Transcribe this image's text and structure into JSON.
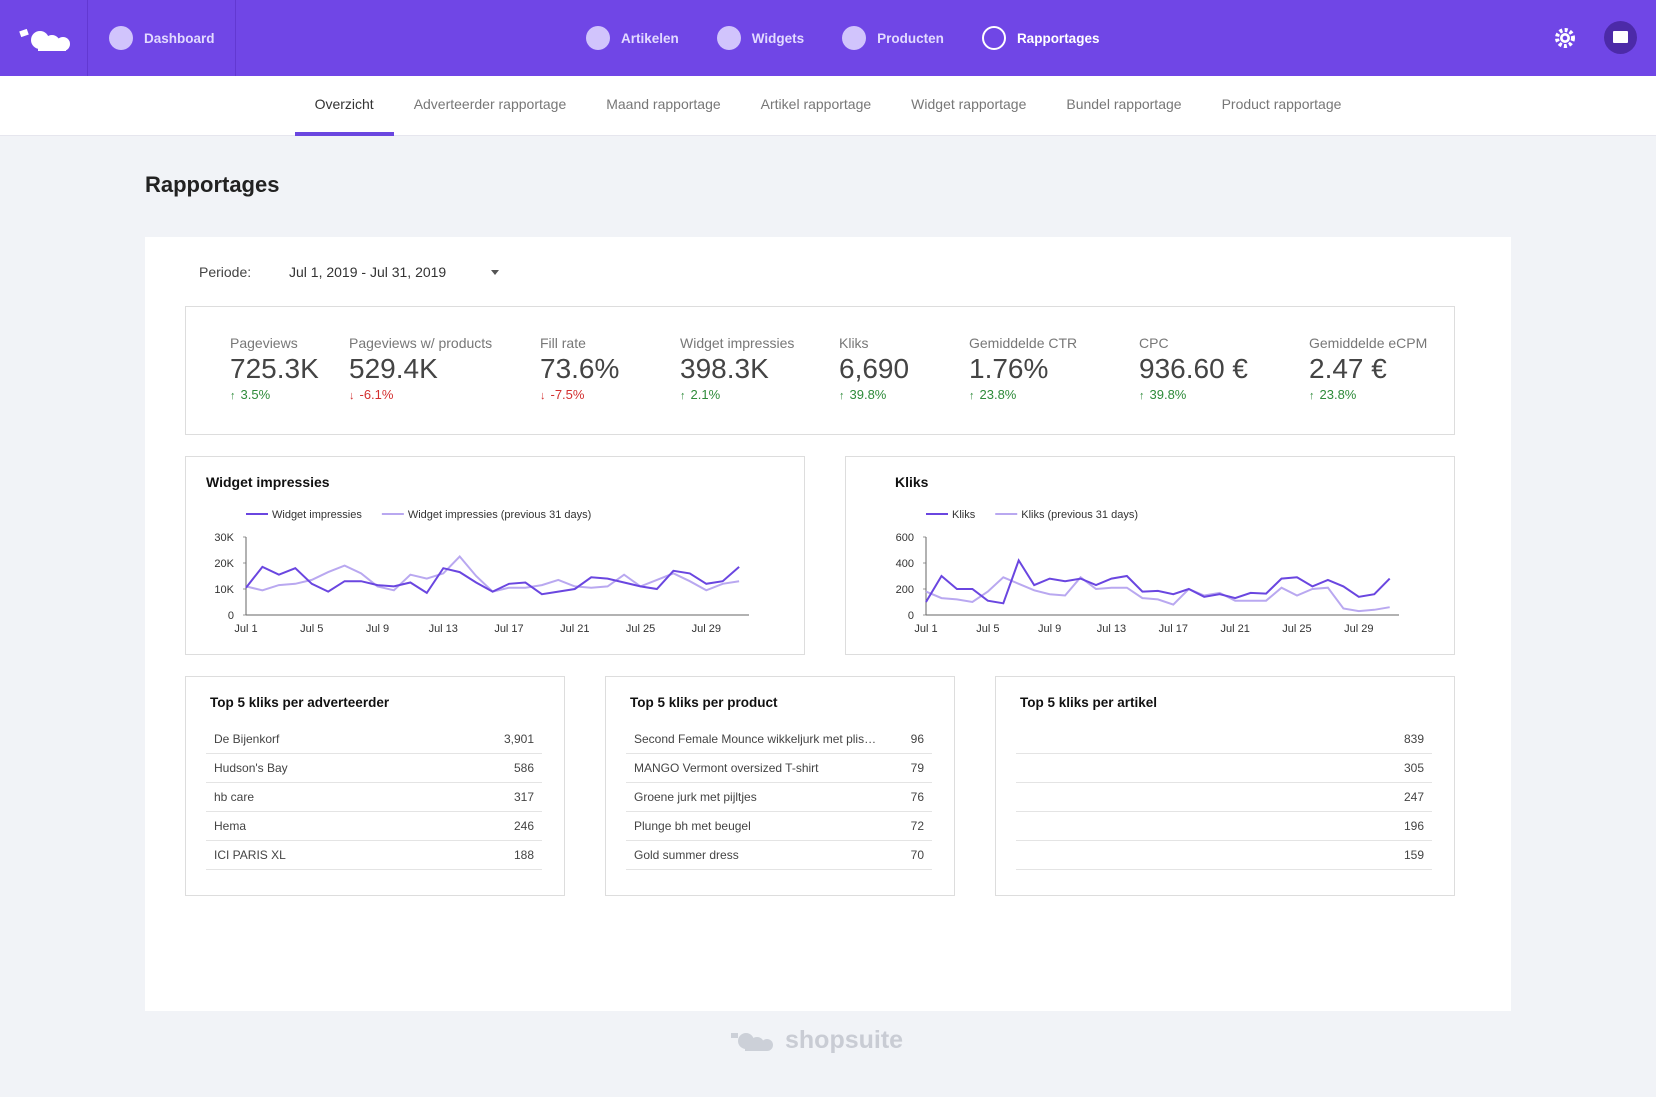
{
  "nav": {
    "dashboard": "Dashboard",
    "items": [
      "Artikelen",
      "Widgets",
      "Producten",
      "Rapportages"
    ],
    "active_index": 3
  },
  "tabs": {
    "items": [
      "Overzicht",
      "Adverteerder rapportage",
      "Maand rapportage",
      "Artikel rapportage",
      "Widget rapportage",
      "Bundel rapportage",
      "Product rapportage"
    ],
    "active_index": 0
  },
  "page_title": "Rapportages",
  "period": {
    "label": "Periode:",
    "value": "Jul 1, 2019 - Jul 31, 2019"
  },
  "kpis": [
    {
      "label": "Pageviews",
      "value": "725.3K",
      "change": "3.5%"
    },
    {
      "label": "Pageviews w/ products",
      "value": "529.4K",
      "change": "-6.1%"
    },
    {
      "label": "Fill rate",
      "value": "73.6%",
      "change": "-7.5%"
    },
    {
      "label": "Widget impressies",
      "value": "398.3K",
      "change": "2.1%"
    },
    {
      "label": "Kliks",
      "value": "6,690",
      "change": "39.8%"
    },
    {
      "label": "Gemiddelde CTR",
      "value": "1.76%",
      "change": "23.8%"
    },
    {
      "label": "CPC",
      "value": "936.60 €",
      "change": "39.8%"
    },
    {
      "label": "Gemiddelde eCPM",
      "value": "2.47 €",
      "change": "23.8%"
    }
  ],
  "chart_data": [
    {
      "type": "line",
      "title": "Widget impressies",
      "categories": [
        "Jul 1",
        null,
        null,
        null,
        "Jul 5",
        null,
        null,
        null,
        "Jul 9",
        null,
        null,
        null,
        "Jul 13",
        null,
        null,
        null,
        "Jul 17",
        null,
        null,
        null,
        "Jul 21",
        null,
        null,
        null,
        "Jul 25",
        null,
        null,
        null,
        "Jul 29",
        null,
        null
      ],
      "series": [
        {
          "name": "Widget impressies",
          "color": "#6a46e0",
          "values": [
            10500,
            18500,
            15500,
            18000,
            12000,
            9000,
            13000,
            13000,
            11500,
            11000,
            12500,
            8500,
            18000,
            16500,
            12500,
            9000,
            12000,
            12500,
            8000,
            9000,
            10000,
            14500,
            14000,
            12500,
            11000,
            10000,
            17000,
            16000,
            12000,
            13000,
            18500
          ]
        },
        {
          "name": "Widget impressies (previous 31 days)",
          "color": "#b9a8f0",
          "values": [
            11000,
            9500,
            11500,
            12000,
            13500,
            16500,
            19000,
            16000,
            11000,
            9500,
            15500,
            14000,
            16000,
            22500,
            15000,
            9000,
            10500,
            10500,
            11500,
            13500,
            11000,
            10500,
            11000,
            15500,
            11000,
            13500,
            16000,
            13000,
            9500,
            12000,
            13000
          ]
        }
      ],
      "ylim": [
        0,
        30000
      ],
      "yticks": [
        0,
        {
          "value": 10000,
          "label": "10K"
        },
        {
          "value": 20000,
          "label": "20K"
        },
        {
          "value": 30000,
          "label": "30K"
        }
      ]
    },
    {
      "type": "line",
      "title": "Kliks",
      "categories": [
        "Jul 1",
        null,
        null,
        null,
        "Jul 5",
        null,
        null,
        null,
        "Jul 9",
        null,
        null,
        null,
        "Jul 13",
        null,
        null,
        null,
        "Jul 17",
        null,
        null,
        null,
        "Jul 21",
        null,
        null,
        null,
        "Jul 25",
        null,
        null,
        null,
        "Jul 29",
        null,
        null
      ],
      "series": [
        {
          "name": "Kliks",
          "color": "#6a46e0",
          "values": [
            100,
            300,
            200,
            200,
            110,
            90,
            420,
            230,
            280,
            260,
            280,
            230,
            280,
            300,
            180,
            185,
            160,
            200,
            140,
            160,
            130,
            170,
            165,
            280,
            290,
            220,
            270,
            220,
            140,
            160,
            280
          ]
        },
        {
          "name": "Kliks (previous 31 days)",
          "color": "#b9a8f0",
          "values": [
            180,
            130,
            120,
            100,
            180,
            290,
            240,
            190,
            160,
            150,
            290,
            200,
            210,
            210,
            130,
            120,
            80,
            200,
            150,
            170,
            110,
            110,
            110,
            210,
            150,
            200,
            210,
            50,
            30,
            40,
            60
          ]
        }
      ],
      "ylim": [
        0,
        600
      ],
      "yticks": [
        0,
        200,
        400,
        600
      ]
    }
  ],
  "tables": [
    {
      "title": "Top 5 kliks per adverteerder",
      "rows": [
        {
          "name": "De Bijenkorf",
          "value": "3,901"
        },
        {
          "name": "Hudson's Bay",
          "value": 586
        },
        {
          "name": "hb care",
          "value": 317
        },
        {
          "name": "Hema",
          "value": 246
        },
        {
          "name": "ICI PARIS XL",
          "value": 188
        }
      ]
    },
    {
      "title": "Top 5 kliks per product",
      "rows": [
        {
          "name": "Second Female Mounce wikkeljurk met plis…",
          "value": 96
        },
        {
          "name": "MANGO Vermont oversized T-shirt",
          "value": 79
        },
        {
          "name": "Groene jurk met pijltjes",
          "value": 76
        },
        {
          "name": "Plunge bh met beugel",
          "value": 72
        },
        {
          "name": "Gold summer dress",
          "value": 70
        }
      ]
    },
    {
      "title": "Top 5 kliks per artikel",
      "rows": [
        {
          "value": 839
        },
        {
          "value": 305
        },
        {
          "value": 247
        },
        {
          "value": 196
        },
        {
          "value": 159
        }
      ]
    }
  ],
  "footer": "shopsuite"
}
